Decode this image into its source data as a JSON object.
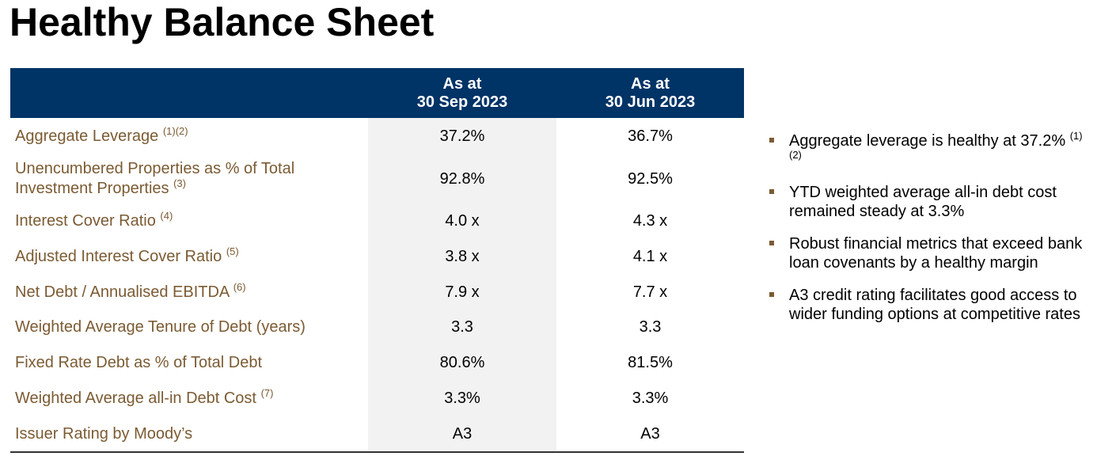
{
  "title": "Healthy Balance Sheet",
  "colors": {
    "header_bg": "#003366",
    "label_text": "#7b5b33",
    "shade": "#f2f2f2",
    "bullet": "#7b5b33"
  },
  "table": {
    "columns": [
      {
        "line1": "As at",
        "line2": "30 Sep 2023"
      },
      {
        "line1": "As at",
        "line2": "30 Jun 2023"
      }
    ],
    "rows": [
      {
        "label": "Aggregate Leverage",
        "note": "(1)(2)",
        "v1": "37.2%",
        "v2": "36.7%"
      },
      {
        "label": "Unencumbered Properties as % of Total",
        "label2": "Investment Properties",
        "note": "(3)",
        "v1": "92.8%",
        "v2": "92.5%"
      },
      {
        "label": "Interest Cover Ratio",
        "note": "(4)",
        "v1": "4.0 x",
        "v2": "4.3 x"
      },
      {
        "label": "Adjusted Interest Cover Ratio",
        "note": "(5)",
        "v1": "3.8 x",
        "v2": "4.1 x"
      },
      {
        "label": "Net Debt / Annualised EBITDA",
        "note": "(6)",
        "v1": "7.9 x",
        "v2": "7.7 x"
      },
      {
        "label": "Weighted Average Tenure of Debt (years)",
        "note": "",
        "v1": "3.3",
        "v2": "3.3"
      },
      {
        "label": "Fixed Rate Debt as % of Total Debt",
        "note": "",
        "v1": "80.6%",
        "v2": "81.5%"
      },
      {
        "label": "Weighted Average all-in Debt Cost",
        "note": "(7)",
        "v1": "3.3%",
        "v2": "3.3%"
      },
      {
        "label": "Issuer Rating by Moody’s",
        "note": "",
        "v1": "A3",
        "v2": "A3"
      }
    ]
  },
  "bullets": [
    {
      "text": "Aggregate leverage is healthy at 37.2%",
      "note": "(1)(2)"
    },
    {
      "text": "YTD weighted average all-in debt cost remained steady at 3.3%",
      "note": ""
    },
    {
      "text": "Robust financial metrics that exceed bank loan covenants by a healthy margin",
      "note": ""
    },
    {
      "text": "A3 credit rating facilitates good access to wider funding options at competitive rates",
      "note": ""
    }
  ]
}
